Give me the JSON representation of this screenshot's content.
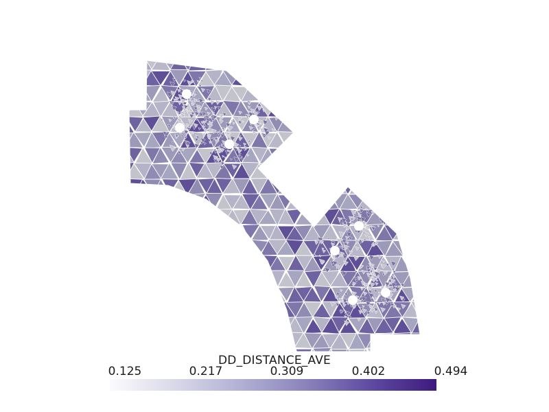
{
  "scene": {
    "background": "#ffffff",
    "mesh_line_color": "#ffffff",
    "hole_color": "#ffffff"
  },
  "colorbar": {
    "title": "DD_DISTANCE_AVE",
    "ticks": [
      "0.125",
      "0.217",
      "0.309",
      "0.402",
      "0.494"
    ],
    "min": 0.125,
    "max": 0.494,
    "stops": [
      "#fbfbfd",
      "#d9d8e9",
      "#b2b0d3",
      "#8a83bb",
      "#5e4aa0",
      "#3d1a7e"
    ]
  }
}
